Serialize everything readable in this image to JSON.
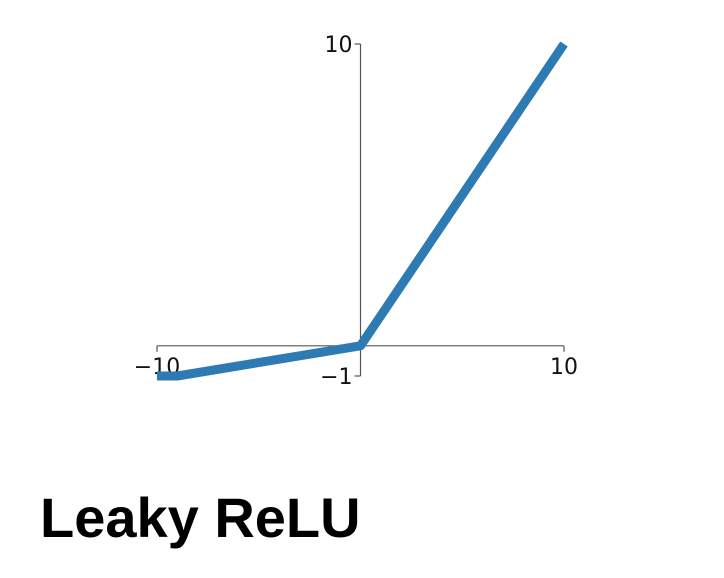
{
  "caption": "Leaky ReLU",
  "chart_data": {
    "type": "line",
    "xlim": [
      -10,
      10
    ],
    "ylim": [
      -1,
      10
    ],
    "x_ticks": [
      {
        "value": -10,
        "label": "−10"
      },
      {
        "value": 10,
        "label": "10"
      }
    ],
    "y_ticks": [
      {
        "value": -1,
        "label": "−1"
      },
      {
        "value": 10,
        "label": "10"
      }
    ],
    "grid": false,
    "line_color": "#2e7bb4",
    "axis_color": "#555555",
    "series": [
      {
        "x": [
          -10,
          -9,
          0,
          10
        ],
        "y": [
          -1,
          -1,
          0,
          10
        ]
      }
    ]
  }
}
